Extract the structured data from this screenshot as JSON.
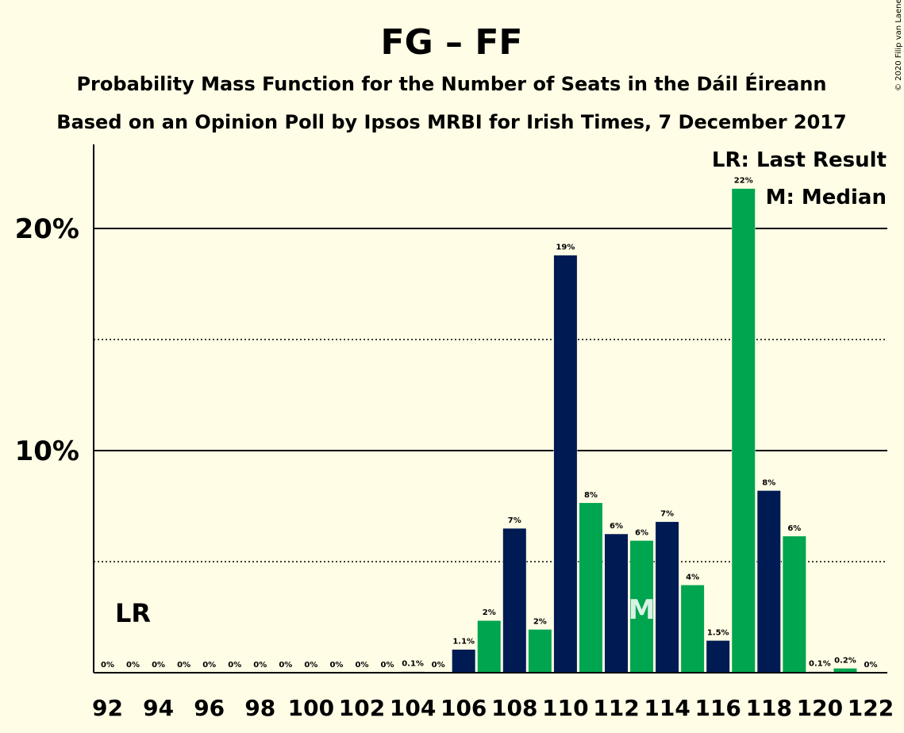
{
  "chart_data": {
    "type": "bar",
    "title": "FG – FF",
    "subtitle": "Probability Mass Function for the Number of Seats in the Dáil Éireann",
    "subtitle2": "Based on an Opinion Poll by Ipsos MRBI for Irish Times, 7 December 2017",
    "copyright": "© 2020 Filip van Laenen",
    "legend": {
      "position": "top-right",
      "last_result": "LR: Last Result",
      "median": "M: Median"
    },
    "last_result_marker": {
      "label": "LR",
      "seats": 93
    },
    "median_marker": {
      "label": "M",
      "seats": 113
    },
    "x_tick_labels": [
      "92",
      "94",
      "96",
      "98",
      "100",
      "102",
      "104",
      "106",
      "108",
      "110",
      "112",
      "114",
      "116",
      "118",
      "120",
      "122"
    ],
    "y_tick_labels": [
      "10%",
      "20%"
    ],
    "ylim": [
      0,
      0.24
    ],
    "grid": {
      "solid": [
        0.1,
        0.2
      ],
      "dotted": [
        0.05,
        0.15
      ]
    },
    "colors": {
      "dark": "#001a54",
      "green": "#00a550",
      "background": "#fffde5"
    },
    "seats": [
      92,
      93,
      94,
      95,
      96,
      97,
      98,
      99,
      100,
      101,
      102,
      103,
      104,
      105,
      106,
      107,
      108,
      109,
      110,
      111,
      112,
      113,
      114,
      115,
      116,
      117,
      118,
      119,
      120,
      121,
      122
    ],
    "values": [
      0,
      0,
      0,
      0,
      0,
      0,
      0,
      0,
      0,
      0,
      0,
      0,
      0.0005,
      0,
      0.0105,
      0.0235,
      0.065,
      0.0195,
      0.188,
      0.0765,
      0.0625,
      0.0595,
      0.068,
      0.0395,
      0.0145,
      0.218,
      0.082,
      0.0615,
      0.0005,
      0.002,
      0
    ],
    "labels": [
      "0%",
      "0%",
      "0%",
      "0%",
      "0%",
      "0%",
      "0%",
      "0%",
      "0%",
      "0%",
      "0%",
      "0%",
      "0.1%",
      "0%",
      "1.1%",
      "2%",
      "7%",
      "2%",
      "19%",
      "8%",
      "6%",
      "6%",
      "7%",
      "4%",
      "1.5%",
      "22%",
      "8%",
      "6%",
      "0.1%",
      "0.2%",
      "0%"
    ]
  }
}
